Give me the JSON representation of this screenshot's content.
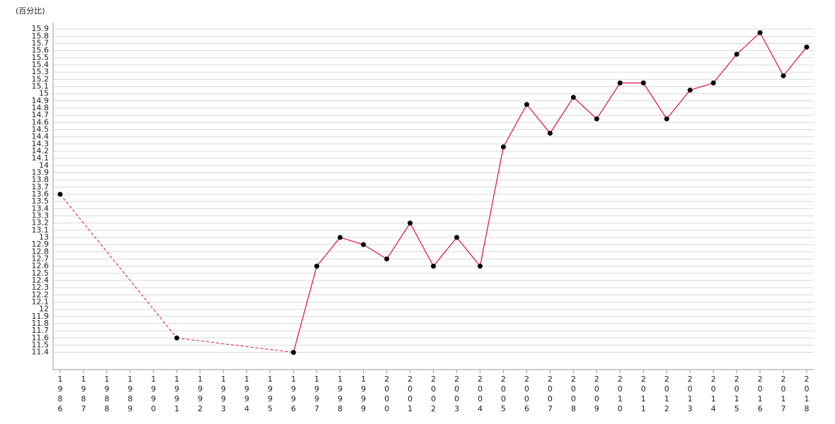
{
  "chart_data": {
    "type": "line",
    "y_label": "(百分比)",
    "categories": [
      "1986",
      "1987",
      "1988",
      "1989",
      "1990",
      "1991",
      "1992",
      "1993",
      "1994",
      "1995",
      "1996",
      "1997",
      "1998",
      "1999",
      "2000",
      "2001",
      "2002",
      "2003",
      "2004",
      "2005",
      "2006",
      "2007",
      "2008",
      "2009",
      "2010",
      "2011",
      "2012",
      "2013",
      "2014",
      "2015",
      "2016",
      "2017",
      "2018"
    ],
    "series": [
      {
        "color": "#e0103c",
        "values": [
          13.6,
          null,
          null,
          null,
          null,
          11.6,
          null,
          null,
          null,
          null,
          11.4,
          12.6,
          13.0,
          12.9,
          12.7,
          13.2,
          12.6,
          13.0,
          12.6,
          14.26,
          14.85,
          14.45,
          14.95,
          14.65,
          15.15,
          15.15,
          14.65,
          15.05,
          15.15,
          15.55,
          15.85,
          15.25,
          15.65
        ]
      }
    ],
    "ylim": [
      11.16,
      15.99
    ],
    "yticks": [
      11.4,
      11.5,
      11.6,
      11.7,
      11.8,
      11.9,
      12,
      12.1,
      12.2,
      12.3,
      12.4,
      12.5,
      12.6,
      12.7,
      12.8,
      12.9,
      13,
      13.1,
      13.2,
      13.3,
      13.4,
      13.5,
      13.6,
      13.7,
      13.8,
      13.9,
      14,
      14.1,
      14.2,
      14.3,
      14.4,
      14.5,
      14.6,
      14.7,
      14.8,
      14.9,
      15,
      15.1,
      15.2,
      15.3,
      15.4,
      15.5,
      15.6,
      15.7,
      15.8,
      15.9
    ],
    "grid": true,
    "marker_color": "#000000",
    "gap_style": "dashed"
  }
}
